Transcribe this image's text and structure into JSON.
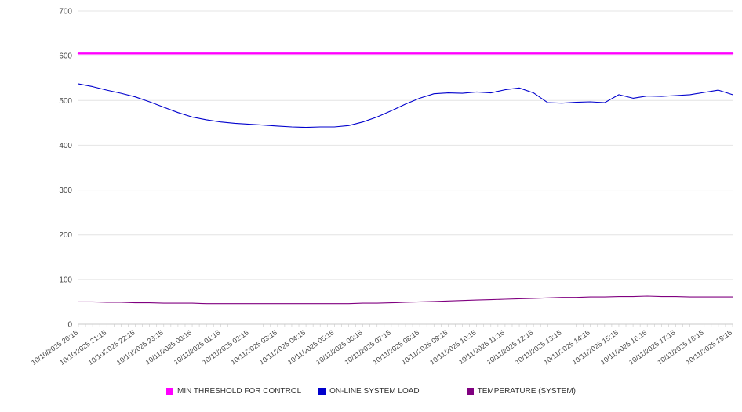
{
  "chart_data": {
    "type": "line",
    "title": "",
    "xlabel": "",
    "ylabel": "",
    "ylim": [
      0,
      700
    ],
    "y_ticks": [
      0,
      100,
      200,
      300,
      400,
      500,
      600,
      700
    ],
    "grid": true,
    "legend_position": "bottom",
    "points_per_label": 2,
    "x_labels": [
      "10/10/2025 20:15",
      "10/10/2025 21:15",
      "10/10/2025 22:15",
      "10/10/2025 23:15",
      "10/11/2025 00:15",
      "10/11/2025 01:15",
      "10/11/2025 02:15",
      "10/11/2025 03:15",
      "10/11/2025 04:15",
      "10/11/2025 05:15",
      "10/11/2025 06:15",
      "10/11/2025 07:15",
      "10/11/2025 08:15",
      "10/11/2025 09:15",
      "10/11/2025 10:15",
      "10/11/2025 11:15",
      "10/11/2025 12:15",
      "10/11/2025 13:15",
      "10/11/2025 14:15",
      "10/11/2025 15:15",
      "10/11/2025 16:15",
      "10/11/2025 17:15",
      "10/11/2025 18:15",
      "10/11/2025 19:15"
    ],
    "series": [
      {
        "name": "MIN THRESHOLD FOR CONTROL",
        "color": "#ff00ff",
        "style": "threshold",
        "constant": 605
      },
      {
        "name": "ON-LINE SYSTEM LOAD",
        "color": "#0000cd",
        "values": [
          537,
          531,
          523,
          516,
          508,
          497,
          485,
          473,
          463,
          457,
          452,
          449,
          447,
          445,
          443,
          441,
          440,
          441,
          441,
          444,
          452,
          463,
          477,
          492,
          505,
          515,
          517,
          516,
          519,
          517,
          524,
          528,
          517,
          495,
          494,
          496,
          497,
          495,
          513,
          505,
          510,
          509,
          511,
          513,
          518,
          523,
          513
        ]
      },
      {
        "name": "TEMPERATURE (SYSTEM)",
        "color": "#800080",
        "values": [
          50,
          50,
          49,
          49,
          48,
          48,
          47,
          47,
          47,
          46,
          46,
          46,
          46,
          46,
          46,
          46,
          46,
          46,
          46,
          46,
          47,
          47,
          48,
          49,
          50,
          51,
          52,
          53,
          54,
          55,
          56,
          57,
          58,
          59,
          60,
          60,
          61,
          61,
          62,
          62,
          63,
          62,
          62,
          61,
          61,
          61,
          61
        ]
      }
    ],
    "colors": {
      "gridline": "#e4e4e4",
      "axis": "#c9c9c9",
      "tick_label": "#444444",
      "legend_text": "#333333",
      "background": "#ffffff"
    }
  }
}
